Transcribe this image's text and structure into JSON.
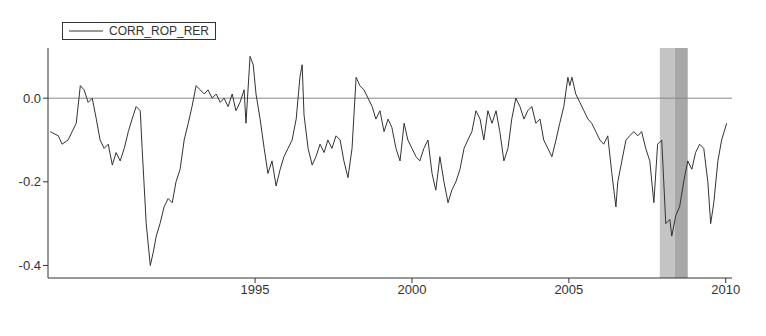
{
  "chart_data": {
    "type": "line",
    "legend": "upper left",
    "grid": false,
    "xlim": [
      1988.4,
      2010.2
    ],
    "xticks": [
      1995,
      2000,
      2005,
      2010
    ],
    "ylim": [
      -0.43,
      0.12
    ],
    "yticks": [
      {
        "value": -0.4,
        "label": "-0.4"
      },
      {
        "value": -0.2,
        "label": "-0.2"
      },
      {
        "value": 0,
        "label": "0.0"
      }
    ],
    "reference_line": 0,
    "shaded_regions": [
      [
        2007.9,
        2008.38
      ],
      [
        2008.38,
        2008.79
      ]
    ],
    "x": [
      1988.47,
      1988.73,
      1988.85,
      1989.04,
      1989.17,
      1989.3,
      1989.43,
      1989.55,
      1989.68,
      1989.81,
      1989.94,
      1990.06,
      1990.19,
      1990.32,
      1990.45,
      1990.57,
      1990.7,
      1990.83,
      1990.96,
      1991.08,
      1991.21,
      1991.34,
      1991.4,
      1991.53,
      1991.66,
      1991.75,
      1991.85,
      1991.97,
      1992.1,
      1992.23,
      1992.36,
      1992.48,
      1992.61,
      1992.74,
      1992.87,
      1992.99,
      1993.12,
      1993.25,
      1993.38,
      1993.5,
      1993.63,
      1993.76,
      1993.89,
      1994.01,
      1994.14,
      1994.27,
      1994.39,
      1994.52,
      1994.65,
      1994.71,
      1994.84,
      1994.94,
      1995.03,
      1995.16,
      1995.29,
      1995.41,
      1995.54,
      1995.67,
      1995.8,
      1995.92,
      1996.05,
      1996.18,
      1996.31,
      1996.43,
      1996.5,
      1996.56,
      1996.69,
      1996.82,
      1996.94,
      1997.07,
      1997.2,
      1997.32,
      1997.45,
      1997.58,
      1997.71,
      1997.83,
      1997.96,
      1998.09,
      1998.22,
      1998.34,
      1998.47,
      1998.6,
      1998.73,
      1998.85,
      1998.98,
      1999.11,
      1999.24,
      1999.36,
      1999.49,
      1999.62,
      1999.75,
      1999.87,
      2000.0,
      2000.13,
      2000.25,
      2000.38,
      2000.51,
      2000.64,
      2000.76,
      2000.89,
      2001.02,
      2001.15,
      2001.27,
      2001.4,
      2001.53,
      2001.66,
      2001.78,
      2001.91,
      2002.04,
      2002.17,
      2002.29,
      2002.42,
      2002.55,
      2002.68,
      2002.8,
      2002.93,
      2003.06,
      2003.18,
      2003.31,
      2003.44,
      2003.57,
      2003.69,
      2003.82,
      2003.95,
      2004.08,
      2004.2,
      2004.33,
      2004.46,
      2004.59,
      2004.71,
      2004.84,
      2004.97,
      2005.03,
      2005.1,
      2005.22,
      2005.35,
      2005.48,
      2005.61,
      2005.73,
      2005.86,
      2005.99,
      2006.11,
      2006.24,
      2006.37,
      2006.5,
      2006.56,
      2006.69,
      2006.82,
      2006.94,
      2007.07,
      2007.2,
      2007.32,
      2007.45,
      2007.58,
      2007.71,
      2007.83,
      2007.96,
      2008.09,
      2008.22,
      2008.28,
      2008.41,
      2008.53,
      2008.66,
      2008.79,
      2008.92,
      2009.04,
      2009.17,
      2009.3,
      2009.43,
      2009.52,
      2009.62,
      2009.75,
      2009.87,
      2010.03
    ],
    "series": [
      {
        "name": "CORR_ROP_RER",
        "color": "#333333",
        "values": [
          -0.08,
          -0.09,
          -0.11,
          -0.1,
          -0.08,
          -0.06,
          0.03,
          0.02,
          -0.01,
          0.0,
          -0.05,
          -0.1,
          -0.12,
          -0.11,
          -0.16,
          -0.13,
          -0.15,
          -0.12,
          -0.08,
          -0.05,
          -0.02,
          -0.03,
          -0.12,
          -0.3,
          -0.4,
          -0.37,
          -0.33,
          -0.3,
          -0.26,
          -0.24,
          -0.25,
          -0.2,
          -0.17,
          -0.1,
          -0.06,
          -0.02,
          0.03,
          0.02,
          0.01,
          0.02,
          0.0,
          0.01,
          -0.01,
          0.0,
          -0.02,
          0.01,
          -0.03,
          -0.01,
          0.02,
          -0.06,
          0.1,
          0.08,
          0.01,
          -0.05,
          -0.12,
          -0.18,
          -0.15,
          -0.21,
          -0.17,
          -0.14,
          -0.12,
          -0.1,
          -0.05,
          0.05,
          0.08,
          -0.04,
          -0.12,
          -0.16,
          -0.14,
          -0.11,
          -0.13,
          -0.1,
          -0.12,
          -0.09,
          -0.1,
          -0.15,
          -0.19,
          -0.12,
          0.05,
          0.03,
          0.02,
          0.0,
          -0.02,
          -0.05,
          -0.03,
          -0.08,
          -0.05,
          -0.07,
          -0.12,
          -0.15,
          -0.06,
          -0.1,
          -0.12,
          -0.14,
          -0.15,
          -0.12,
          -0.1,
          -0.18,
          -0.22,
          -0.14,
          -0.2,
          -0.25,
          -0.22,
          -0.2,
          -0.17,
          -0.12,
          -0.1,
          -0.08,
          -0.03,
          -0.05,
          -0.1,
          -0.03,
          -0.06,
          -0.03,
          -0.08,
          -0.15,
          -0.12,
          -0.05,
          0.0,
          -0.02,
          -0.05,
          -0.03,
          -0.02,
          -0.06,
          -0.05,
          -0.1,
          -0.12,
          -0.14,
          -0.1,
          -0.06,
          -0.02,
          0.05,
          0.03,
          0.05,
          0.01,
          -0.01,
          -0.03,
          -0.05,
          -0.06,
          -0.08,
          -0.1,
          -0.11,
          -0.09,
          -0.18,
          -0.26,
          -0.2,
          -0.15,
          -0.1,
          -0.09,
          -0.08,
          -0.09,
          -0.08,
          -0.12,
          -0.15,
          -0.25,
          -0.11,
          -0.1,
          -0.3,
          -0.29,
          -0.33,
          -0.28,
          -0.26,
          -0.2,
          -0.15,
          -0.17,
          -0.13,
          -0.11,
          -0.12,
          -0.2,
          -0.3,
          -0.25,
          -0.15,
          -0.1,
          -0.06
        ]
      }
    ]
  }
}
